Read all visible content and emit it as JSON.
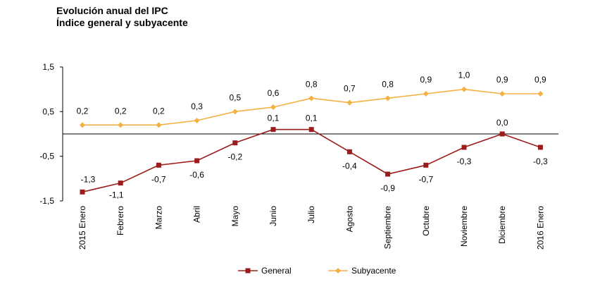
{
  "chart_data": {
    "type": "line",
    "title": "Evolución anual del IPC",
    "subtitle": "Índice general y subyacente",
    "categories": [
      "2015 Enero",
      "Febrero",
      "Marzo",
      "Abril",
      "Mayo",
      "Junio",
      "Julio",
      "Agosto",
      "Septiembre",
      "Octubre",
      "Noviembre",
      "Diciembre",
      "2016 Enero"
    ],
    "series": [
      {
        "name": "General",
        "color": "#9b1c1c",
        "marker": "square",
        "values": [
          -1.3,
          -1.1,
          -0.7,
          -0.6,
          -0.2,
          0.1,
          0.1,
          -0.4,
          -0.9,
          -0.7,
          -0.3,
          0.0,
          -0.3
        ],
        "labels": [
          "-1,3",
          "-1,1",
          "-0,7",
          "-0,6",
          "-0,2",
          "0,1",
          "0,1",
          "-0,4",
          "-0,9",
          "-0,7",
          "-0,3",
          "0,0",
          "-0,3"
        ]
      },
      {
        "name": "Subyacente",
        "color": "#f5b042",
        "marker": "diamond",
        "values": [
          0.2,
          0.2,
          0.2,
          0.3,
          0.5,
          0.6,
          0.8,
          0.7,
          0.8,
          0.9,
          1.0,
          0.9,
          0.9
        ],
        "labels": [
          "0,2",
          "0,2",
          "0,2",
          "0,3",
          "0,5",
          "0,6",
          "0,8",
          "0,7",
          "0,8",
          "0,9",
          "1,0",
          "0,9",
          "0,9"
        ]
      }
    ],
    "ylim": [
      -1.5,
      1.5
    ],
    "yticks": [
      1.5,
      0.5,
      -0.5,
      -1.5
    ],
    "ytick_labels": [
      "1,5",
      "0,5",
      "-0,5",
      "-1,5"
    ],
    "grid": false,
    "legend_position": "bottom"
  }
}
